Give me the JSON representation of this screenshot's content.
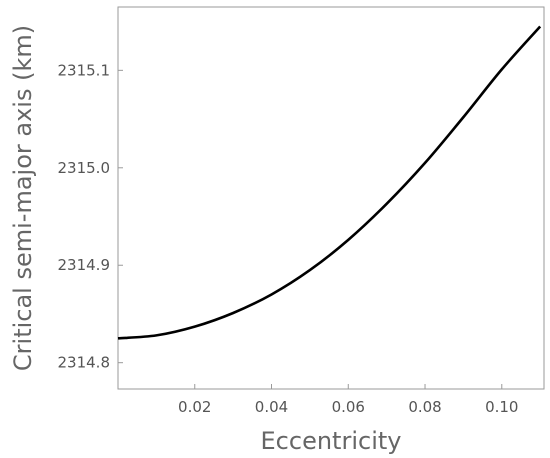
{
  "chart_data": {
    "type": "line",
    "title": "",
    "xlabel": "Eccentricity",
    "ylabel": "Critical semi-major axis (km)",
    "xlim": [
      0.0,
      0.111
    ],
    "ylim": [
      2314.773,
      2315.165
    ],
    "x_ticks": [
      0.02,
      0.04,
      0.06,
      0.08,
      0.1
    ],
    "x_tick_labels": [
      "0.02",
      "0.04",
      "0.06",
      "0.08",
      "0.10"
    ],
    "y_ticks": [
      2314.8,
      2314.9,
      2315.0,
      2315.1
    ],
    "y_tick_labels": [
      "2314.8",
      "2314.9",
      "2315.0",
      "2315.1"
    ],
    "grid": false,
    "legend": "none",
    "line_color": "#000000",
    "series": [
      {
        "x": [
          0.0,
          0.01,
          0.02,
          0.03,
          0.04,
          0.05,
          0.06,
          0.07,
          0.08,
          0.09,
          0.1,
          0.11
        ],
        "y": [
          2314.825,
          2314.828,
          2314.837,
          2314.851,
          2314.87,
          2314.895,
          2314.926,
          2314.963,
          2315.005,
          2315.052,
          2315.101,
          2315.145
        ]
      }
    ]
  }
}
